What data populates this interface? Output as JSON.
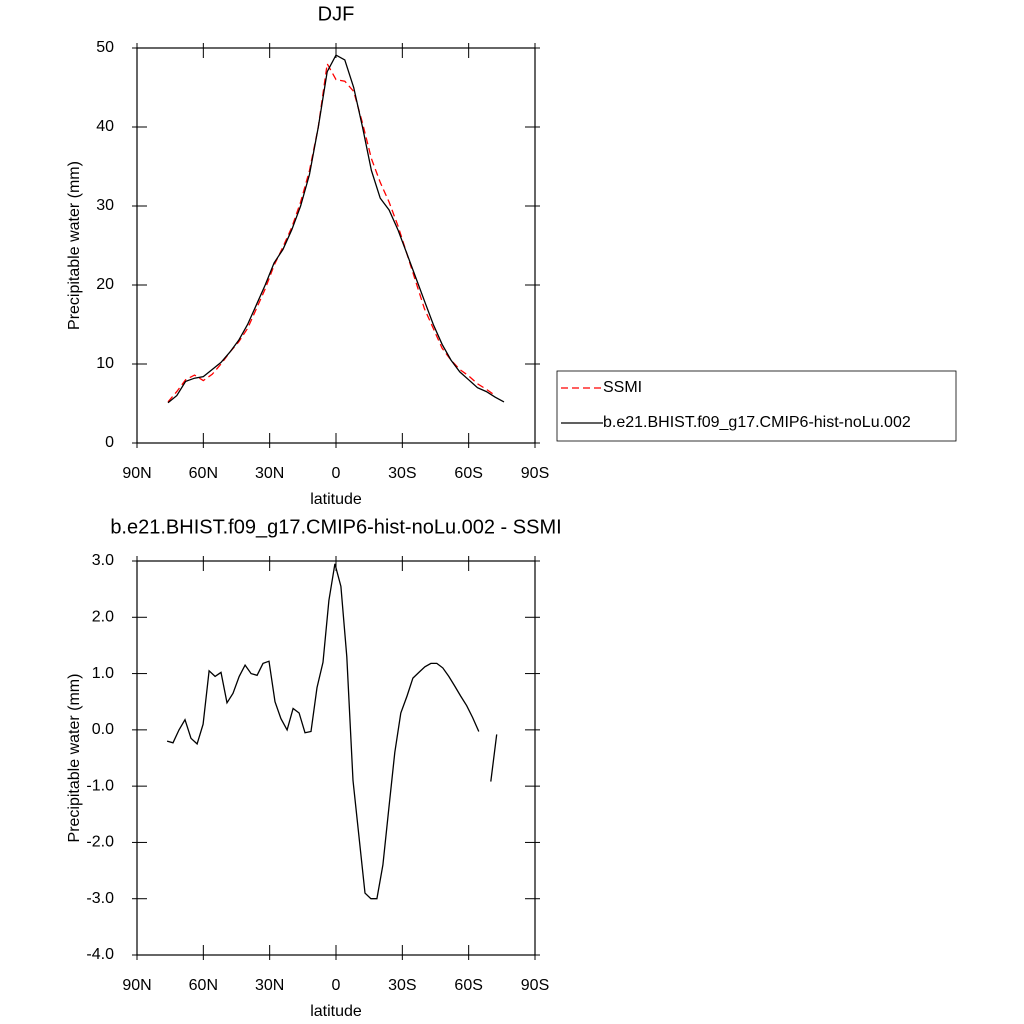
{
  "chart_data": [
    {
      "type": "line",
      "title": "DJF",
      "xlabel": "latitude",
      "ylabel": "Precipitable water (mm)",
      "x": [
        76,
        72,
        68,
        64,
        60,
        56,
        52,
        48,
        44,
        40,
        36,
        32,
        28,
        24,
        20,
        16,
        12,
        8,
        4,
        0,
        -4,
        -8,
        -12,
        -16,
        -20,
        -24,
        -28,
        -32,
        -36,
        -40,
        -44,
        -48,
        -52,
        -56,
        -60,
        -64,
        -68,
        -72,
        -76
      ],
      "series": [
        {
          "name": "SSMI",
          "color": "#ff0000",
          "linestyle": "dashed",
          "values": [
            5.2,
            6.5,
            8.0,
            8.6,
            7.9,
            8.7,
            10.0,
            11.5,
            12.8,
            14.5,
            17.0,
            19.5,
            22.5,
            24.8,
            27.3,
            30.5,
            34.5,
            40.0,
            48.0,
            46.0,
            45.8,
            44.5,
            40.5,
            36.0,
            33.0,
            30.5,
            27.5,
            24.0,
            20.5,
            17.0,
            14.5,
            12.0,
            10.5,
            9.3,
            8.5,
            7.5,
            6.8,
            6.0,
            null
          ]
        },
        {
          "name": "b.e21.BHIST.f09_g17.CMIP6-hist-noLu.002",
          "color": "#000000",
          "linestyle": "solid",
          "values": [
            5.1,
            6.0,
            7.8,
            8.2,
            8.4,
            9.3,
            10.2,
            11.5,
            13.0,
            15.0,
            17.5,
            20.0,
            22.8,
            24.5,
            27.0,
            30.0,
            34.0,
            40.0,
            47.0,
            49.1,
            48.5,
            45.0,
            40.0,
            34.5,
            31.0,
            29.5,
            27.0,
            24.0,
            21.0,
            18.0,
            15.0,
            12.5,
            10.5,
            9.0,
            8.0,
            7.0,
            6.5,
            5.8,
            5.2
          ]
        }
      ],
      "xlim": [
        90,
        -90
      ],
      "xticks": [
        {
          "value": 90,
          "label": "90N"
        },
        {
          "value": 60,
          "label": "60N"
        },
        {
          "value": 30,
          "label": "30N"
        },
        0,
        {
          "value": -30,
          "label": "30S"
        },
        {
          "value": -60,
          "label": "60S"
        },
        {
          "value": -90,
          "label": "90S"
        }
      ],
      "ylim": [
        0,
        50
      ],
      "yticks": [
        0,
        10,
        20,
        30,
        40,
        50
      ],
      "legend": "right"
    },
    {
      "type": "line",
      "title": "b.e21.BHIST.f09_g17.CMIP6-hist-noLu.002 - SSMI",
      "xlabel": "latitude",
      "ylabel": "Precipitable water (mm)",
      "x": [
        76.4,
        73.7,
        71.0,
        68.3,
        65.6,
        62.8,
        60.1,
        57.4,
        54.7,
        52.0,
        49.3,
        46.6,
        43.8,
        41.1,
        38.4,
        35.7,
        33.0,
        30.3,
        27.6,
        24.9,
        22.1,
        19.4,
        16.7,
        14.0,
        11.3,
        8.6,
        5.9,
        3.2,
        0.5,
        -2.2,
        -4.9,
        -7.7,
        -10.4,
        -13.1,
        -15.8,
        -18.5,
        -21.2,
        -23.9,
        -26.6,
        -29.3,
        -32.1,
        -34.8,
        -37.5,
        -40.2,
        -42.9,
        -45.6,
        -48.3,
        -51.0,
        -53.7,
        -56.4,
        -59.1,
        -61.8,
        -64.6,
        -67.3,
        -70.0,
        -72.7
      ],
      "color": "#000000",
      "values": [
        -0.2,
        -0.23,
        0.0,
        0.18,
        -0.15,
        -0.25,
        0.1,
        1.05,
        0.95,
        1.02,
        0.48,
        0.65,
        0.95,
        1.15,
        1.0,
        0.97,
        1.18,
        1.22,
        0.5,
        0.2,
        0.0,
        0.38,
        0.3,
        -0.05,
        -0.03,
        0.75,
        1.2,
        2.3,
        2.95,
        2.55,
        1.3,
        -0.9,
        -1.9,
        -2.9,
        -3.0,
        -3.0,
        -2.4,
        -1.4,
        -0.4,
        0.3,
        0.6,
        0.92,
        1.02,
        1.12,
        1.18,
        1.18,
        1.1,
        0.95,
        0.78,
        0.6,
        0.43,
        0.22,
        -0.03,
        null,
        -0.92,
        -0.08
      ],
      "xlim": [
        90,
        -90
      ],
      "xticks": [
        {
          "value": 90,
          "label": "90N"
        },
        {
          "value": 60,
          "label": "60N"
        },
        {
          "value": 30,
          "label": "30N"
        },
        0,
        {
          "value": -30,
          "label": "30S"
        },
        {
          "value": -60,
          "label": "60S"
        },
        {
          "value": -90,
          "label": "90S"
        }
      ],
      "ylim": [
        -4,
        3
      ],
      "yticks": [
        {
          "value": -4,
          "label": "-4.0"
        },
        {
          "value": -3,
          "label": "-3.0"
        },
        {
          "value": -2,
          "label": "-2.0"
        },
        {
          "value": -1,
          "label": "-1.0"
        },
        {
          "value": 0,
          "label": "0.0"
        },
        {
          "value": 1,
          "label": "1.0"
        },
        {
          "value": 2,
          "label": "2.0"
        },
        {
          "value": 3,
          "label": "3.0"
        }
      ]
    }
  ]
}
